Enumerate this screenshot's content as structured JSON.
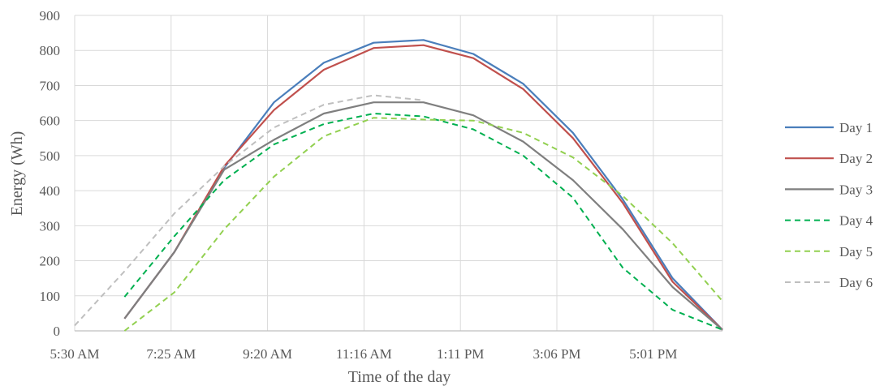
{
  "chart_data": {
    "type": "line",
    "xlabel": "Time of the day",
    "ylabel": "Energy (Wh)",
    "x_tick_labels": [
      "5:30 AM",
      "7:25 AM",
      "9:20 AM",
      "11:16 AM",
      "1:11 PM",
      "3:06 PM",
      "5:01 PM"
    ],
    "y_tick_labels": [
      "0",
      "100",
      "200",
      "300",
      "400",
      "500",
      "600",
      "700",
      "800",
      "900"
    ],
    "ylim": [
      0,
      900
    ],
    "x": [
      "5:30 AM",
      "6:30 AM",
      "7:30 AM",
      "8:30 AM",
      "9:30 AM",
      "10:30 AM",
      "11:30 AM",
      "12:30 PM",
      "1:30 PM",
      "2:30 PM",
      "3:30 PM",
      "4:30 PM",
      "5:30 PM",
      "6:30 PM"
    ],
    "grid": true,
    "legend_position": "right",
    "series": [
      {
        "name": "Day 1",
        "color": "#4a7ebb",
        "dash": "solid",
        "values": [
          null,
          35,
          225,
          465,
          652,
          765,
          822,
          830,
          790,
          705,
          565,
          375,
          150,
          3
        ]
      },
      {
        "name": "Day 2",
        "color": "#c0504d",
        "dash": "solid",
        "values": [
          null,
          35,
          225,
          470,
          630,
          745,
          807,
          815,
          778,
          690,
          550,
          365,
          140,
          3
        ]
      },
      {
        "name": "Day 3",
        "color": "#7f7f7f",
        "dash": "solid",
        "values": [
          null,
          35,
          225,
          460,
          545,
          620,
          652,
          652,
          615,
          540,
          430,
          290,
          125,
          3
        ]
      },
      {
        "name": "Day 4",
        "color": "#00b050",
        "dash": "dashed",
        "values": [
          null,
          97,
          270,
          430,
          532,
          590,
          620,
          612,
          575,
          500,
          380,
          180,
          60,
          3
        ]
      },
      {
        "name": "Day 5",
        "color": "#92d050",
        "dash": "dashed",
        "values": [
          null,
          0,
          110,
          290,
          440,
          555,
          608,
          603,
          600,
          565,
          495,
          385,
          250,
          85
        ]
      },
      {
        "name": "Day 6",
        "color": "#bfbfbf",
        "dash": "dashed",
        "values": [
          15,
          170,
          335,
          470,
          580,
          645,
          672,
          658,
          null,
          null,
          null,
          null,
          null,
          null
        ]
      }
    ]
  }
}
